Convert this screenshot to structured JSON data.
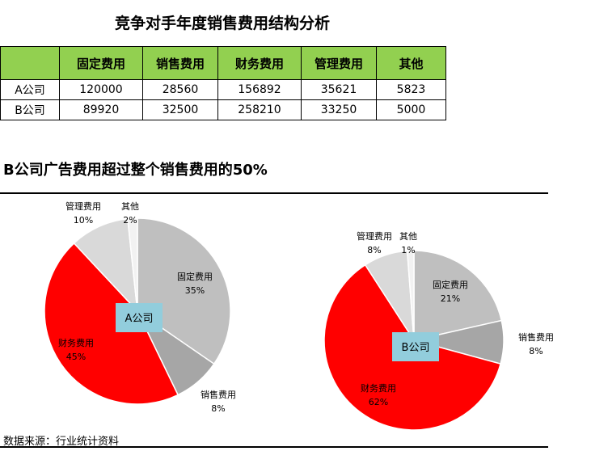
{
  "header": {
    "title": "竞争对手年度销售费用结构分析"
  },
  "table": {
    "columns": [
      "",
      "固定费用",
      "销售费用",
      "财务费用",
      "管理费用",
      "其他"
    ],
    "rows": [
      {
        "label": "A公司",
        "values": [
          "120000",
          "28560",
          "156892",
          "35621",
          "5823"
        ]
      },
      {
        "label": "B公司",
        "values": [
          "89920",
          "32500",
          "258210",
          "33250",
          "5000"
        ]
      }
    ]
  },
  "subtitle": "B公司广告费用超过整个销售费用的50%",
  "source": "数据来源：行业统计资料",
  "chart_data": [
    {
      "type": "pie",
      "center_label": "A公司",
      "categories": [
        "固定费用",
        "销售费用",
        "财务费用",
        "管理费用",
        "其他"
      ],
      "values": [
        120000,
        28560,
        156892,
        35621,
        5823
      ],
      "percent_labels": [
        "35%",
        "8%",
        "45%",
        "10%",
        "2%"
      ],
      "colors": [
        "#bfbfbf",
        "#a6a6a6",
        "#ff0000",
        "#d9d9d9",
        "#f2f2f2"
      ]
    },
    {
      "type": "pie",
      "center_label": "B公司",
      "categories": [
        "固定费用",
        "销售费用",
        "财务费用",
        "管理费用",
        "其他"
      ],
      "values": [
        89920,
        32500,
        258210,
        33250,
        5000
      ],
      "percent_labels": [
        "21%",
        "8%",
        "62%",
        "8%",
        "1%"
      ],
      "colors": [
        "#bfbfbf",
        "#a6a6a6",
        "#ff0000",
        "#d9d9d9",
        "#f2f2f2"
      ]
    }
  ]
}
